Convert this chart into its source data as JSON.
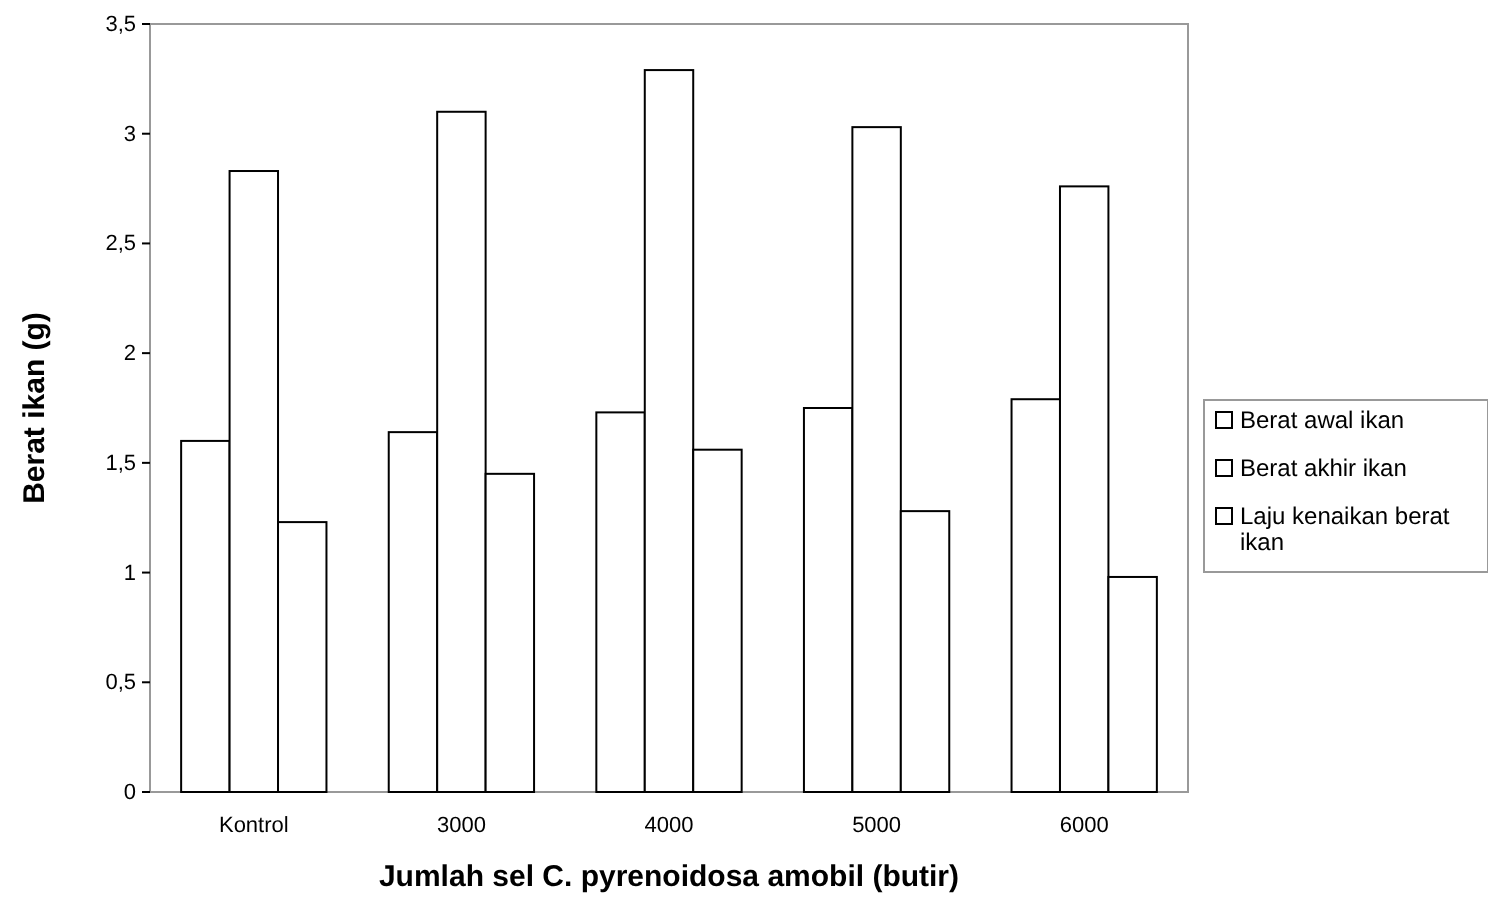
{
  "chart_data": {
    "type": "bar",
    "xlabel": "Jumlah sel C. pyrenoidosa  amobil (butir)",
    "ylabel": "Berat ikan (g)",
    "categories": [
      "Kontrol",
      "3000",
      "4000",
      "5000",
      "6000"
    ],
    "series": [
      {
        "name": "Berat awal ikan",
        "color": "#ffffff",
        "values": [
          1.6,
          1.64,
          1.73,
          1.75,
          1.79
        ]
      },
      {
        "name": "Berat akhir ikan",
        "color": "#ffffff",
        "values": [
          2.83,
          3.1,
          3.29,
          3.03,
          2.76
        ]
      },
      {
        "name": "Laju kenaikan berat ikan",
        "color": "#ffffff",
        "values": [
          1.23,
          1.45,
          1.56,
          1.28,
          0.98
        ]
      }
    ],
    "ylim": [
      0,
      3.5
    ],
    "yticks": [
      0,
      {
        "value": 0.5,
        "label": "0,5"
      },
      1,
      {
        "value": 1.5,
        "label": "1,5"
      },
      2,
      {
        "value": 2.5,
        "label": "2,5"
      },
      3,
      {
        "value": 3.5,
        "label": "3,5"
      }
    ],
    "grid": false,
    "legend": "right"
  }
}
